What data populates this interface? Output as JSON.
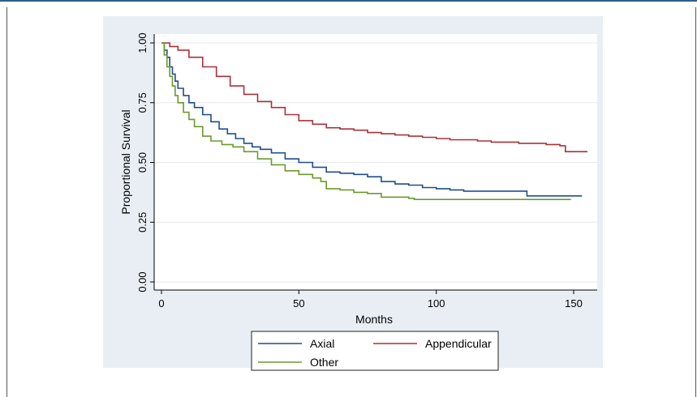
{
  "chart_data": {
    "type": "line",
    "title": "",
    "xlabel": "Months",
    "ylabel": "Proportional Survival",
    "xlim": [
      0,
      155
    ],
    "ylim": [
      0,
      1
    ],
    "x_ticks": [
      0,
      50,
      100,
      150
    ],
    "y_ticks": [
      0.0,
      0.25,
      0.5,
      0.75,
      1.0
    ],
    "x_tick_labels": [
      "0",
      "50",
      "100",
      "150"
    ],
    "y_tick_labels": [
      "0.00",
      "0.25",
      "0.50",
      "0.75",
      "1.00"
    ],
    "grid": "horizontal",
    "legend_position": "bottom",
    "series": [
      {
        "name": "Axial",
        "color": "#1f4e8c",
        "points": [
          [
            0,
            1.0
          ],
          [
            1,
            0.97
          ],
          [
            2,
            0.94
          ],
          [
            3,
            0.9
          ],
          [
            4,
            0.87
          ],
          [
            5,
            0.84
          ],
          [
            6,
            0.81
          ],
          [
            8,
            0.78
          ],
          [
            10,
            0.75
          ],
          [
            12,
            0.73
          ],
          [
            15,
            0.7
          ],
          [
            18,
            0.67
          ],
          [
            21,
            0.64
          ],
          [
            24,
            0.62
          ],
          [
            27,
            0.6
          ],
          [
            30,
            0.58
          ],
          [
            33,
            0.565
          ],
          [
            36,
            0.555
          ],
          [
            40,
            0.54
          ],
          [
            45,
            0.515
          ],
          [
            50,
            0.5
          ],
          [
            55,
            0.48
          ],
          [
            60,
            0.46
          ],
          [
            65,
            0.455
          ],
          [
            70,
            0.45
          ],
          [
            75,
            0.44
          ],
          [
            80,
            0.42
          ],
          [
            85,
            0.41
          ],
          [
            90,
            0.405
          ],
          [
            95,
            0.395
          ],
          [
            100,
            0.39
          ],
          [
            105,
            0.385
          ],
          [
            110,
            0.38
          ],
          [
            120,
            0.38
          ],
          [
            130,
            0.38
          ],
          [
            133,
            0.36
          ],
          [
            140,
            0.36
          ],
          [
            150,
            0.36
          ],
          [
            153,
            0.36
          ]
        ]
      },
      {
        "name": "Appendicular",
        "color": "#a8323a",
        "points": [
          [
            0,
            1.0
          ],
          [
            3,
            0.985
          ],
          [
            6,
            0.97
          ],
          [
            10,
            0.94
          ],
          [
            15,
            0.9
          ],
          [
            20,
            0.86
          ],
          [
            25,
            0.82
          ],
          [
            30,
            0.785
          ],
          [
            35,
            0.755
          ],
          [
            40,
            0.73
          ],
          [
            45,
            0.7
          ],
          [
            50,
            0.675
          ],
          [
            55,
            0.66
          ],
          [
            60,
            0.645
          ],
          [
            65,
            0.64
          ],
          [
            70,
            0.635
          ],
          [
            75,
            0.625
          ],
          [
            80,
            0.62
          ],
          [
            85,
            0.615
          ],
          [
            90,
            0.61
          ],
          [
            95,
            0.605
          ],
          [
            100,
            0.6
          ],
          [
            105,
            0.595
          ],
          [
            110,
            0.595
          ],
          [
            115,
            0.59
          ],
          [
            120,
            0.585
          ],
          [
            125,
            0.585
          ],
          [
            130,
            0.58
          ],
          [
            135,
            0.58
          ],
          [
            140,
            0.575
          ],
          [
            145,
            0.57
          ],
          [
            147,
            0.545
          ],
          [
            150,
            0.545
          ],
          [
            155,
            0.545
          ]
        ]
      },
      {
        "name": "Other",
        "color": "#6b9a2e",
        "points": [
          [
            0,
            1.0
          ],
          [
            1,
            0.95
          ],
          [
            2,
            0.9
          ],
          [
            3,
            0.86
          ],
          [
            4,
            0.82
          ],
          [
            5,
            0.78
          ],
          [
            6,
            0.75
          ],
          [
            8,
            0.71
          ],
          [
            10,
            0.68
          ],
          [
            12,
            0.65
          ],
          [
            15,
            0.61
          ],
          [
            18,
            0.59
          ],
          [
            22,
            0.575
          ],
          [
            26,
            0.565
          ],
          [
            30,
            0.545
          ],
          [
            35,
            0.515
          ],
          [
            40,
            0.49
          ],
          [
            45,
            0.465
          ],
          [
            50,
            0.45
          ],
          [
            55,
            0.435
          ],
          [
            58,
            0.42
          ],
          [
            60,
            0.39
          ],
          [
            65,
            0.385
          ],
          [
            70,
            0.375
          ],
          [
            75,
            0.37
          ],
          [
            80,
            0.355
          ],
          [
            85,
            0.355
          ],
          [
            90,
            0.35
          ],
          [
            92,
            0.345
          ],
          [
            100,
            0.345
          ],
          [
            110,
            0.345
          ],
          [
            120,
            0.345
          ],
          [
            130,
            0.345
          ],
          [
            140,
            0.345
          ],
          [
            149,
            0.345
          ]
        ]
      }
    ]
  }
}
